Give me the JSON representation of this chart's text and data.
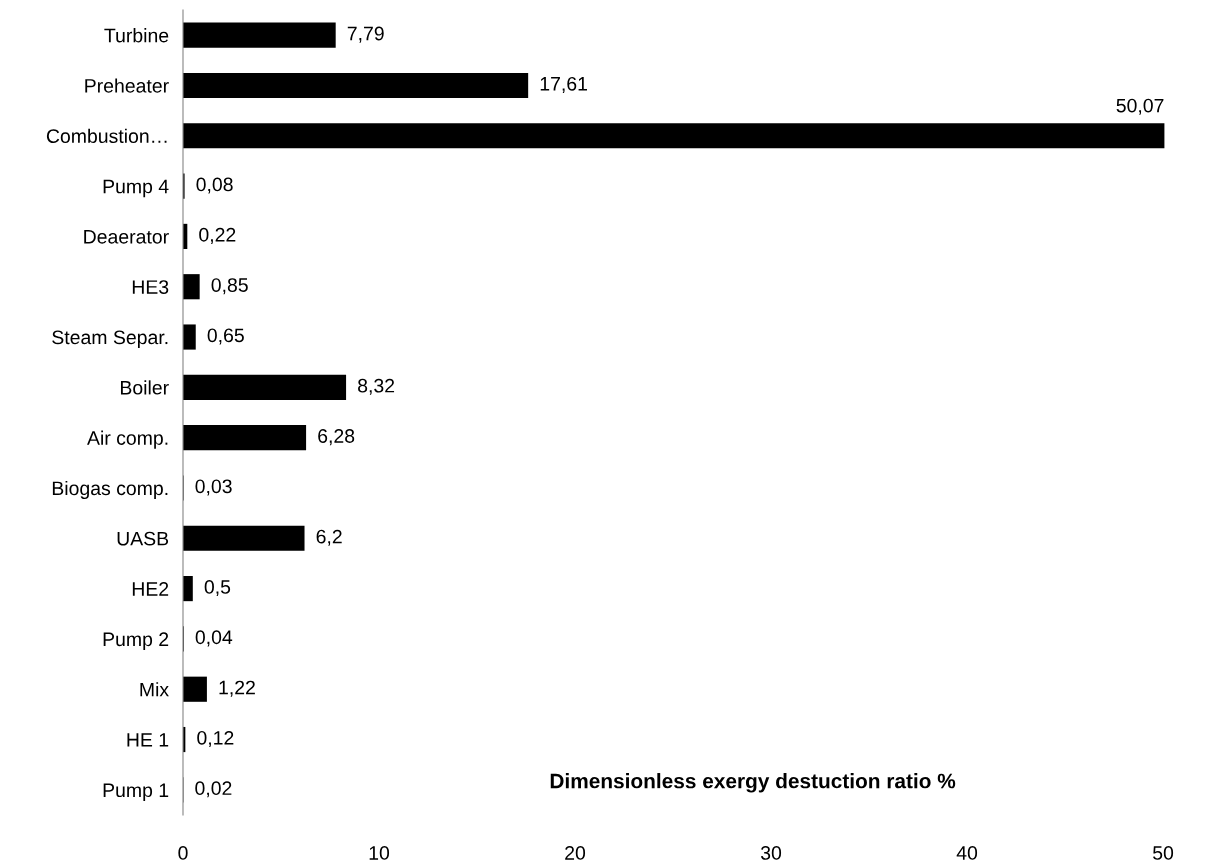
{
  "chart_data": {
    "type": "bar",
    "orientation": "horizontal",
    "title": "Dimensionless exergy destuction ratio %",
    "categories": [
      "Turbine",
      "Preheater",
      "Combustion…",
      "Pump 4",
      "Deaerator",
      "HE3",
      "Steam Separ.",
      "Boiler",
      "Air comp.",
      "Biogas comp.",
      "UASB",
      "HE2",
      "Pump 2",
      "Mix",
      "HE 1",
      "Pump 1"
    ],
    "values": [
      7.79,
      17.61,
      50.07,
      0.08,
      0.22,
      0.85,
      0.65,
      8.32,
      6.28,
      0.03,
      6.2,
      0.5,
      0.04,
      1.22,
      0.12,
      0.02
    ],
    "value_labels": [
      "7,79",
      "17,61",
      "50,07",
      "0,08",
      "0,22",
      "0,85",
      "0,65",
      "8,32",
      "6,28",
      "0,03",
      "6,2",
      "0,5",
      "0,04",
      "1,22",
      "0,12",
      "0,02"
    ],
    "color": "#000000",
    "xlim": [
      0,
      50.1
    ],
    "xticks": [
      0,
      10,
      20,
      30,
      40,
      50
    ],
    "grid": false,
    "legend": false
  }
}
